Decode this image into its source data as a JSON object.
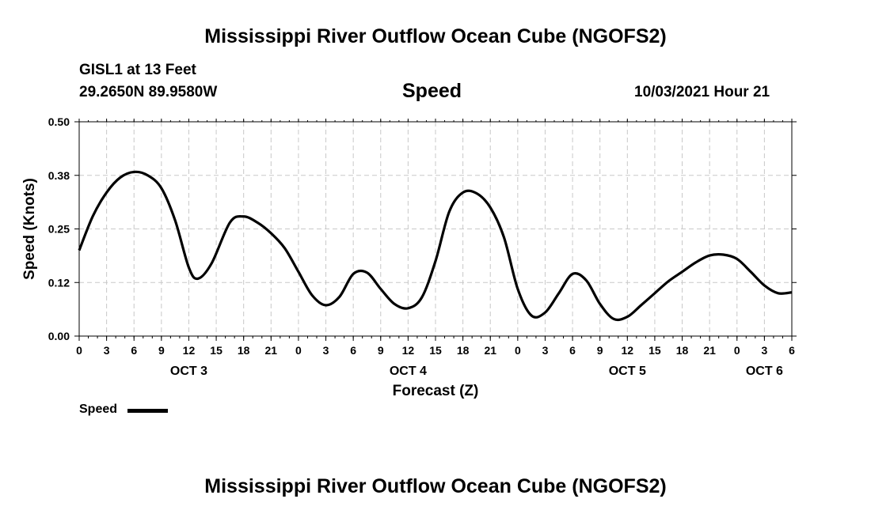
{
  "page": {
    "title_top": "Mississippi River Outflow Ocean Cube (NGOFS2)",
    "title_bottom": "Mississippi River Outflow Ocean Cube (NGOFS2)",
    "station": "GISL1 at 13 Feet",
    "coords": "29.2650N  89.9580W",
    "variable": "Speed",
    "datetime": "10/03/2021 Hour 21"
  },
  "chart_data": {
    "type": "line",
    "title": "Speed",
    "xlabel": "Forecast (Z)",
    "ylabel": "Speed (Knots)",
    "ylim": [
      0,
      0.5
    ],
    "yticks": [
      0,
      0.125,
      0.25,
      0.375,
      0.5
    ],
    "ytick_labels": [
      "0.00",
      "0.12",
      "0.25",
      "0.38",
      "0.50"
    ],
    "xlim": [
      0,
      78
    ],
    "xticks": [
      0,
      3,
      6,
      9,
      12,
      15,
      18,
      21,
      24,
      27,
      30,
      33,
      36,
      39,
      42,
      45,
      48,
      51,
      54,
      57,
      60,
      63,
      66,
      69,
      72,
      75,
      78
    ],
    "xtick_labels": [
      "0",
      "3",
      "6",
      "9",
      "12",
      "15",
      "18",
      "21",
      "0",
      "3",
      "6",
      "9",
      "12",
      "15",
      "18",
      "21",
      "0",
      "3",
      "6",
      "9",
      "12",
      "15",
      "18",
      "21",
      "0",
      "3",
      "6"
    ],
    "day_labels": [
      {
        "x": 12,
        "label": "OCT 3"
      },
      {
        "x": 36,
        "label": "OCT 4"
      },
      {
        "x": 60,
        "label": "OCT 5"
      },
      {
        "x": 75,
        "label": "OCT 6"
      }
    ],
    "grid": true,
    "legend": "bottom-left",
    "series": [
      {
        "name": "Speed",
        "color": "#000000",
        "x": [
          0,
          1.5,
          3,
          4.5,
          6,
          7.5,
          9,
          10.5,
          12,
          13,
          14.5,
          16.5,
          18,
          19.5,
          21,
          22.5,
          24,
          25.5,
          27,
          28.5,
          30,
          31.5,
          33,
          34.5,
          36,
          37.5,
          39,
          40.5,
          42,
          43.5,
          45,
          46.5,
          48,
          49.5,
          51,
          52.5,
          54,
          55.5,
          57,
          58.5,
          60,
          61.5,
          63,
          64.5,
          66,
          67.5,
          69,
          70.5,
          72,
          73.5,
          75,
          76.5,
          78
        ],
        "values": [
          0.2,
          0.28,
          0.335,
          0.37,
          0.383,
          0.375,
          0.345,
          0.27,
          0.16,
          0.134,
          0.17,
          0.265,
          0.279,
          0.265,
          0.24,
          0.205,
          0.15,
          0.095,
          0.072,
          0.092,
          0.145,
          0.148,
          0.11,
          0.075,
          0.065,
          0.09,
          0.175,
          0.29,
          0.335,
          0.333,
          0.3,
          0.23,
          0.11,
          0.048,
          0.055,
          0.1,
          0.145,
          0.13,
          0.075,
          0.04,
          0.045,
          0.072,
          0.1,
          0.128,
          0.15,
          0.172,
          0.188,
          0.19,
          0.18,
          0.15,
          0.118,
          0.1,
          0.102
        ]
      }
    ]
  }
}
